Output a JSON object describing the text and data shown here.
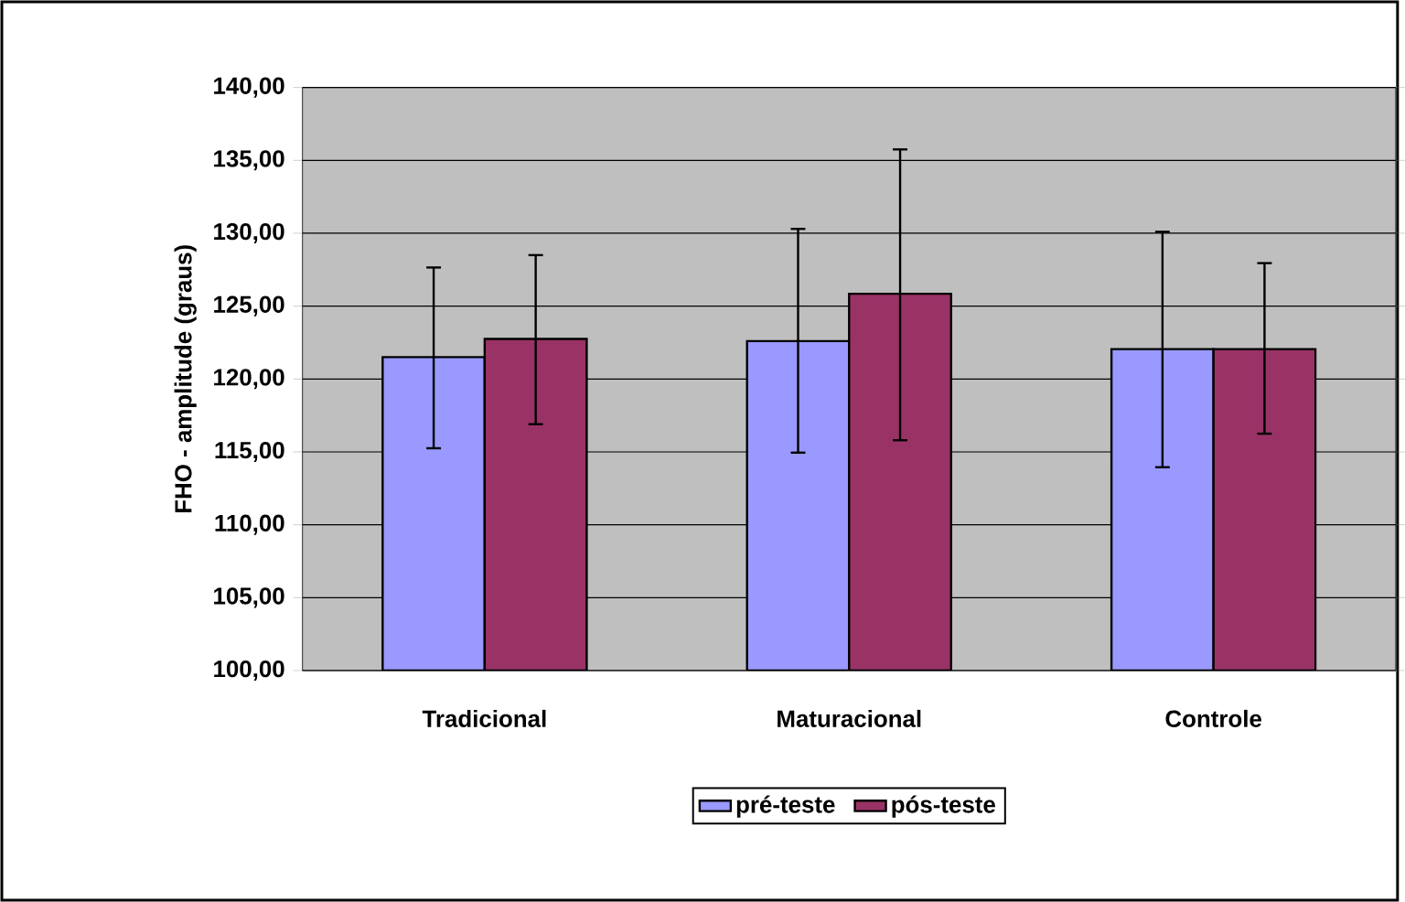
{
  "chart_data": {
    "type": "bar",
    "ylabel": "FHO - amplitude (graus)",
    "categories": [
      "Tradicional",
      "Maturacional",
      "Controle"
    ],
    "series": [
      {
        "name": "pré-teste",
        "color": "#9999ff",
        "values": [
          121.5,
          122.6,
          122.05
        ],
        "errors": [
          [
            115.25,
            127.65
          ],
          [
            114.95,
            130.3
          ],
          [
            113.95,
            130.1
          ]
        ]
      },
      {
        "name": "pós-teste",
        "color": "#993366",
        "values": [
          122.75,
          125.85,
          122.05
        ],
        "errors": [
          [
            116.9,
            128.5
          ],
          [
            115.8,
            135.75
          ],
          [
            116.25,
            127.95
          ]
        ]
      }
    ],
    "ylim": [
      100,
      140
    ],
    "yticks": [
      {
        "value": 100,
        "label": "100,00"
      },
      {
        "value": 105,
        "label": "105,00"
      },
      {
        "value": 110,
        "label": "110,00"
      },
      {
        "value": 115,
        "label": "115,00"
      },
      {
        "value": 120,
        "label": "120,00"
      },
      {
        "value": 125,
        "label": "125,00"
      },
      {
        "value": 130,
        "label": "130,00"
      },
      {
        "value": 135,
        "label": "135,00"
      },
      {
        "value": 140,
        "label": "140,00"
      }
    ],
    "grid": "y",
    "legend": "bottom"
  }
}
